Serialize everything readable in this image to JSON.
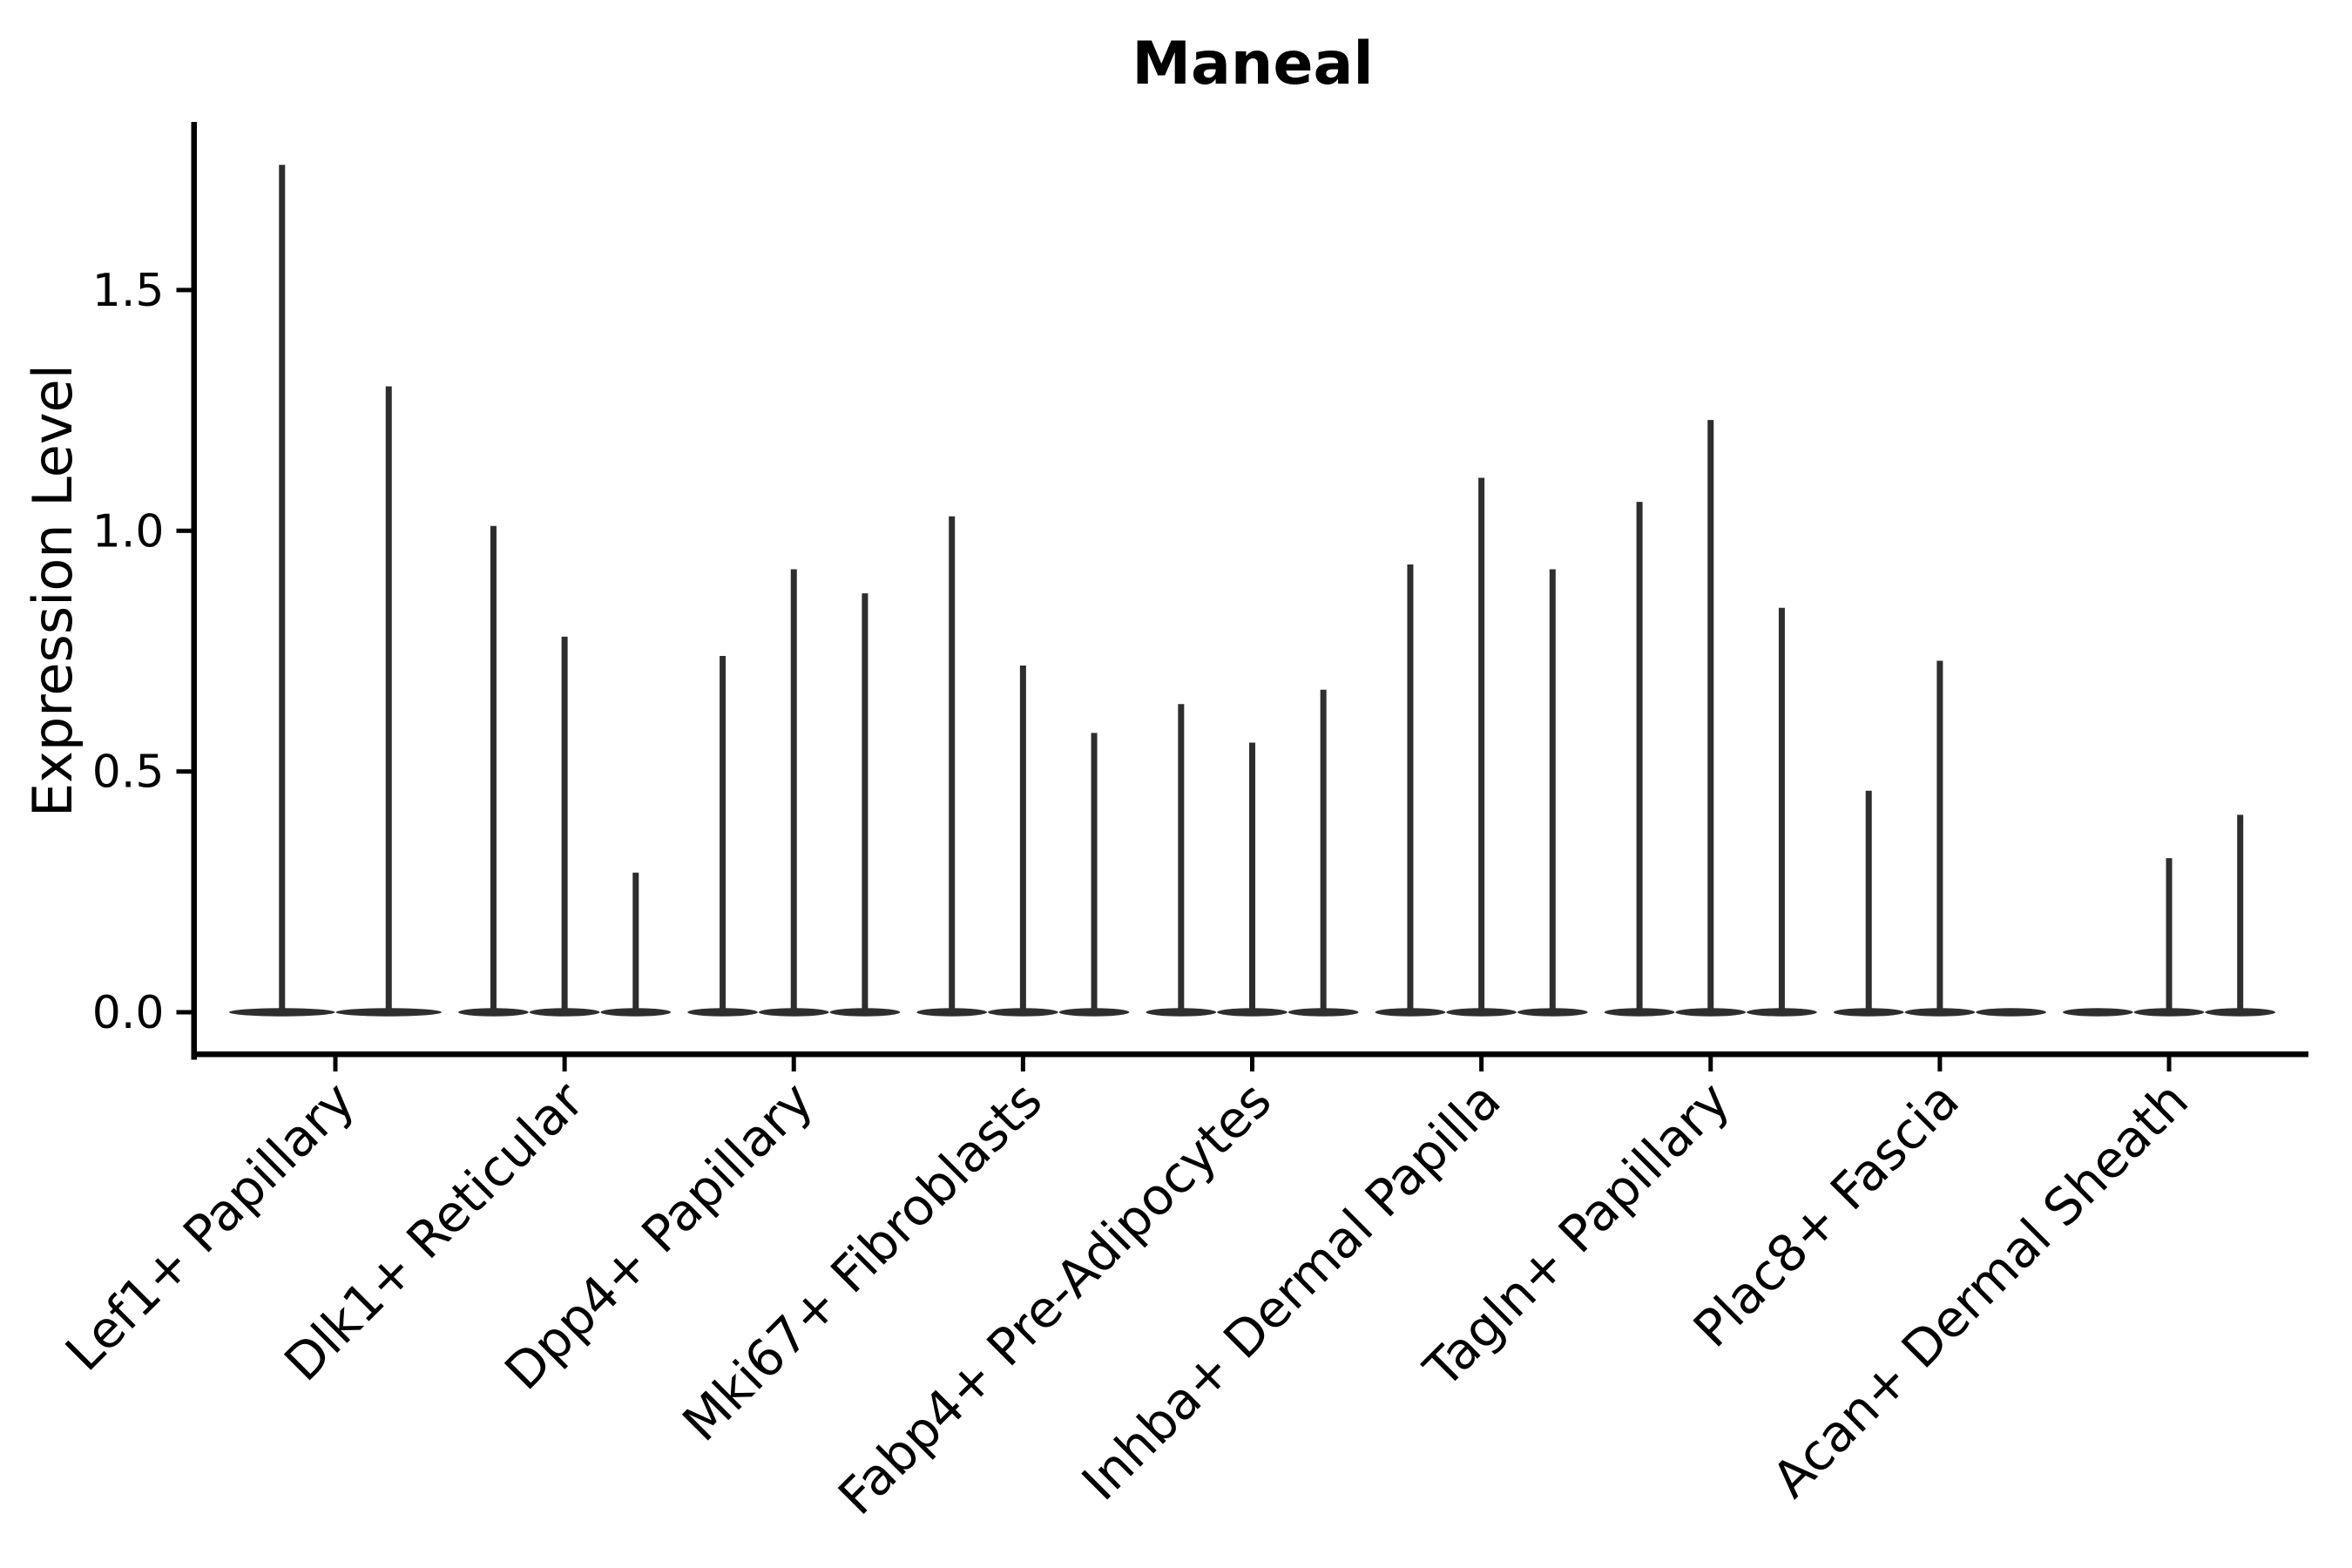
{
  "figure": {
    "title": "Maneal",
    "background_color": "#ffffff",
    "axis_color": "#000000",
    "violin_color": "#2e2e2e"
  },
  "chart_data": {
    "type": "violin",
    "title": "Maneal",
    "xlabel": "",
    "ylabel": "Expression Level",
    "yticks": [
      0.0,
      0.5,
      1.0,
      1.5
    ],
    "ylim": [
      -0.09,
      1.85
    ],
    "grid": false,
    "legend": false,
    "categories": [
      "Lef1+ Papillary",
      "Dlk1+ Reticular",
      "Dpp4+ Papillary",
      "Mki67+ Fibroblasts",
      "Fabp4+ Pre-Adipocytes",
      "Inhba+ Dermal Papilla",
      "Tagln+ Papillary",
      "Plac8+ Fascia",
      "Acan+ Dermal Sheath"
    ],
    "groups": [
      {
        "label": "Lef1+ Papillary",
        "violin_max_values": [
          1.76,
          1.3
        ]
      },
      {
        "label": "Dlk1+ Reticular",
        "violin_max_values": [
          1.01,
          0.78,
          0.29
        ]
      },
      {
        "label": "Dpp4+ Papillary",
        "violin_max_values": [
          0.74,
          0.92,
          0.87
        ]
      },
      {
        "label": "Mki67+ Fibroblasts",
        "violin_max_values": [
          1.03,
          0.72,
          0.58
        ]
      },
      {
        "label": "Fabp4+ Pre-Adipocytes",
        "violin_max_values": [
          0.64,
          0.56,
          0.67
        ]
      },
      {
        "label": "Inhba+ Dermal Papilla",
        "violin_max_values": [
          0.93,
          1.11,
          0.92
        ]
      },
      {
        "label": "Tagln+ Papillary",
        "violin_max_values": [
          1.06,
          1.23,
          0.84
        ]
      },
      {
        "label": "Plac8+ Fascia",
        "violin_max_values": [
          0.46,
          0.73,
          0.0
        ]
      },
      {
        "label": "Acan+ Dermal Sheath",
        "violin_max_values": [
          0.0,
          0.32,
          0.41
        ]
      }
    ],
    "annotation": "all violins collapsed to a thin baseline at 0 with a narrow spike up to the listed maximum; flat violins (0.0) have no spike"
  }
}
